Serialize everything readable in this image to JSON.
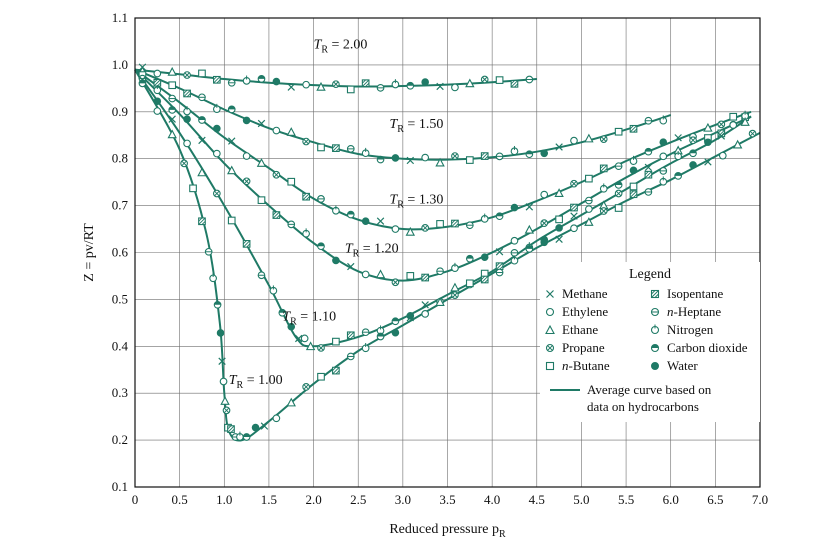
{
  "colors": {
    "curve": "#1f7a66",
    "marker": "#1f7a66",
    "grid": "#6e6e6e",
    "frame": "#111111"
  },
  "chart_data": {
    "type": "line",
    "xlabel": "Reduced pressure p",
    "xlabel_sub": "R",
    "ylabel": "Z = pv/RT",
    "xlim": [
      0,
      7.0
    ],
    "ylim": [
      0.1,
      1.1
    ],
    "xticks": [
      "0",
      "0.5",
      "1.0",
      "1.5",
      "2.0",
      "2.5",
      "3.0",
      "3.5",
      "4.0",
      "4.5",
      "5.0",
      "5.5",
      "6.0",
      "6.5",
      "7.0"
    ],
    "yticks": [
      "0.1",
      "0.2",
      "0.3",
      "0.4",
      "0.5",
      "0.6",
      "0.7",
      "0.8",
      "0.9",
      "1.0",
      "1.1"
    ],
    "grid": true,
    "series": [
      {
        "name": "T_R = 2.00",
        "label_main": "T",
        "label_sub": "R",
        "label_val": " = 2.00",
        "label_at": [
          2.0,
          1.035
        ],
        "x": [
          0,
          0.5,
          1.0,
          1.5,
          2.0,
          2.5,
          3.0,
          3.5,
          4.0,
          4.5
        ],
        "y": [
          0.99,
          0.98,
          0.97,
          0.962,
          0.957,
          0.954,
          0.955,
          0.958,
          0.963,
          0.97
        ]
      },
      {
        "name": "T_R = 1.50",
        "label_main": "T",
        "label_sub": "R",
        "label_val": " = 1.50",
        "label_at": [
          2.85,
          0.865
        ],
        "x": [
          0,
          0.5,
          1.0,
          1.5,
          2.0,
          2.5,
          3.0,
          3.5,
          4.0,
          4.5,
          5.0,
          5.5,
          6.0
        ],
        "y": [
          0.99,
          0.95,
          0.905,
          0.865,
          0.835,
          0.81,
          0.8,
          0.798,
          0.803,
          0.815,
          0.835,
          0.862,
          0.893
        ]
      },
      {
        "name": "T_R = 1.30",
        "label_main": "T",
        "label_sub": "R",
        "label_val": " = 1.30",
        "label_at": [
          2.85,
          0.705
        ],
        "x": [
          0,
          0.5,
          1.0,
          1.5,
          2.0,
          2.5,
          3.0,
          3.5,
          4.0,
          4.5,
          5.0,
          5.5,
          6.0,
          6.5,
          6.9
        ],
        "y": [
          0.99,
          0.92,
          0.845,
          0.78,
          0.715,
          0.67,
          0.65,
          0.655,
          0.675,
          0.71,
          0.75,
          0.795,
          0.835,
          0.872,
          0.9
        ]
      },
      {
        "name": "T_R = 1.20",
        "label_main": "T",
        "label_sub": "R",
        "label_val": " = 1.20",
        "label_at": [
          2.35,
          0.6
        ],
        "x": [
          0,
          0.5,
          1.0,
          1.5,
          2.0,
          2.5,
          3.0,
          3.5,
          4.0,
          4.5,
          5.0,
          5.5,
          6.0,
          6.5,
          6.9
        ],
        "y": [
          0.99,
          0.895,
          0.79,
          0.7,
          0.62,
          0.56,
          0.54,
          0.56,
          0.6,
          0.65,
          0.705,
          0.76,
          0.81,
          0.855,
          0.89
        ]
      },
      {
        "name": "T_R = 1.10",
        "label_main": "T",
        "label_sub": "R",
        "label_val": " = 1.10",
        "label_at": [
          1.65,
          0.455
        ],
        "x": [
          0,
          0.5,
          1.0,
          1.5,
          1.8,
          2.0,
          2.5,
          3.0,
          3.5,
          4.0,
          4.5,
          5.0,
          5.5,
          6.0,
          6.5,
          6.9
        ],
        "y": [
          0.99,
          0.855,
          0.7,
          0.53,
          0.42,
          0.4,
          0.42,
          0.46,
          0.51,
          0.56,
          0.625,
          0.68,
          0.735,
          0.79,
          0.84,
          0.89
        ]
      },
      {
        "name": "T_R = 1.00",
        "label_main": "T",
        "label_sub": "R",
        "label_val": " = 1.00",
        "label_at": [
          1.05,
          0.32
        ],
        "x": [
          0,
          0.5,
          0.8,
          0.95,
          1.0,
          1.05,
          1.2,
          1.5,
          2.0,
          2.5,
          3.0,
          3.5,
          4.0,
          4.5,
          5.0,
          5.5,
          6.0,
          6.5,
          7.0
        ],
        "y": [
          0.99,
          0.82,
          0.64,
          0.45,
          0.3,
          0.22,
          0.2,
          0.24,
          0.32,
          0.39,
          0.445,
          0.5,
          0.555,
          0.61,
          0.66,
          0.71,
          0.755,
          0.805,
          0.855
        ]
      }
    ],
    "legend": {
      "title": "Legend",
      "placement": "bottom-right",
      "items": [
        {
          "symbol": "cross",
          "pre": "",
          "label": "Methane"
        },
        {
          "symbol": "circle",
          "pre": "",
          "label": "Ethylene"
        },
        {
          "symbol": "triangle",
          "pre": "",
          "label": "Ethane"
        },
        {
          "symbol": "circle-x",
          "pre": "",
          "label": "Propane"
        },
        {
          "symbol": "square",
          "pre": "n-",
          "label": "Butane"
        },
        {
          "symbol": "square-slash",
          "pre": "",
          "label": "Isopentane"
        },
        {
          "symbol": "circle-minus",
          "pre": "n-",
          "label": "Heptane"
        },
        {
          "symbol": "circle-bar",
          "pre": "",
          "label": "Nitrogen"
        },
        {
          "symbol": "circle-half",
          "pre": "",
          "label": "Carbon dioxide"
        },
        {
          "symbol": "dot",
          "pre": "",
          "label": "Water"
        }
      ],
      "curve_label_1": "Average curve based on",
      "curve_label_2": "data on hydrocarbons"
    }
  }
}
